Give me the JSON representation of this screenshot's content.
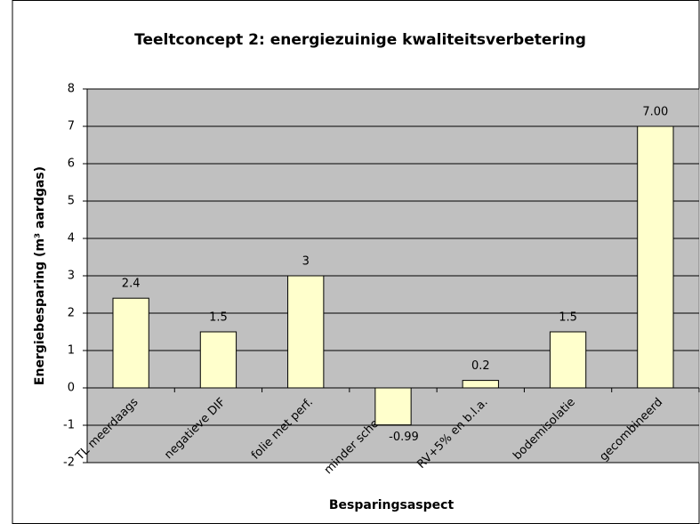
{
  "chart_data": {
    "type": "bar",
    "title": "Teeltconcept 2: energiezuinige kwaliteitsverbetering",
    "ylabel": "Energiebesparing (m³ aardgas)",
    "xlabel": "Besparingsaspect",
    "categories": [
      "TL meerdaags",
      "negatieve DIF",
      "folie met perf.",
      "minder schermen",
      "RV+5% en b.l.a.",
      "bodemisolatie",
      "gecombineerd"
    ],
    "values": [
      2.4,
      1.5,
      3,
      -0.99,
      0.2,
      1.5,
      7
    ],
    "value_labels": [
      "2.4",
      "1.5",
      "3",
      "-0.99",
      "0.2",
      "1.5",
      "7.00"
    ],
    "color": "#ffffcc",
    "ylim": [
      -2,
      8
    ],
    "yticks": [
      -2,
      -1,
      0,
      1,
      2,
      3,
      4,
      5,
      6,
      7,
      8
    ],
    "grid": true
  }
}
